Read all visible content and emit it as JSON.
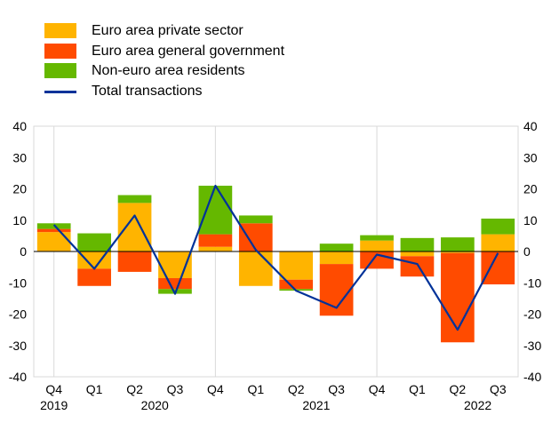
{
  "chart_data": {
    "type": "bar",
    "stacked": true,
    "title": "",
    "xlabel": "",
    "ylabel": "",
    "ylim": [
      -40,
      40
    ],
    "yticks": [
      -40,
      -30,
      -20,
      -10,
      0,
      10,
      20,
      30,
      40
    ],
    "grid": "vertical separators",
    "legend_position": "top-left",
    "categories": [
      "Q4",
      "Q1",
      "Q2",
      "Q3",
      "Q4",
      "Q1",
      "Q2",
      "Q3",
      "Q4",
      "Q1",
      "Q2",
      "Q3"
    ],
    "year_labels": [
      {
        "label": "2019",
        "index": 0
      },
      {
        "label": "2020",
        "index": 2.5
      },
      {
        "label": "2021",
        "index": 6.5
      },
      {
        "label": "2022",
        "index": 10.5
      }
    ],
    "year_boundaries": [
      0.5,
      4.5,
      8.5
    ],
    "series": [
      {
        "name": "Euro area private sector",
        "color": "#ffb400",
        "values": [
          6.2,
          -5.5,
          15.5,
          -8.5,
          1.5,
          -11.0,
          -9.0,
          -4.0,
          3.5,
          -1.5,
          -0.5,
          5.5
        ]
      },
      {
        "name": "Euro area general government",
        "color": "#ff4b00",
        "values": [
          1.0,
          -5.5,
          -6.5,
          -3.5,
          4.0,
          9.0,
          -3.0,
          -16.5,
          -5.5,
          -6.5,
          -28.5,
          -10.5
        ]
      },
      {
        "name": "Non-euro area residents",
        "color": "#65b800",
        "values": [
          1.8,
          5.8,
          2.5,
          -1.5,
          15.5,
          2.5,
          -0.5,
          2.5,
          1.7,
          4.3,
          4.5,
          5.0
        ]
      }
    ],
    "line_series": {
      "name": "Total transactions",
      "color": "#003299",
      "values": [
        8.5,
        -5.5,
        11.5,
        -13.5,
        21.0,
        0.5,
        -12.5,
        -18.0,
        -1.0,
        -4.0,
        -25.0,
        -0.5
      ]
    }
  }
}
